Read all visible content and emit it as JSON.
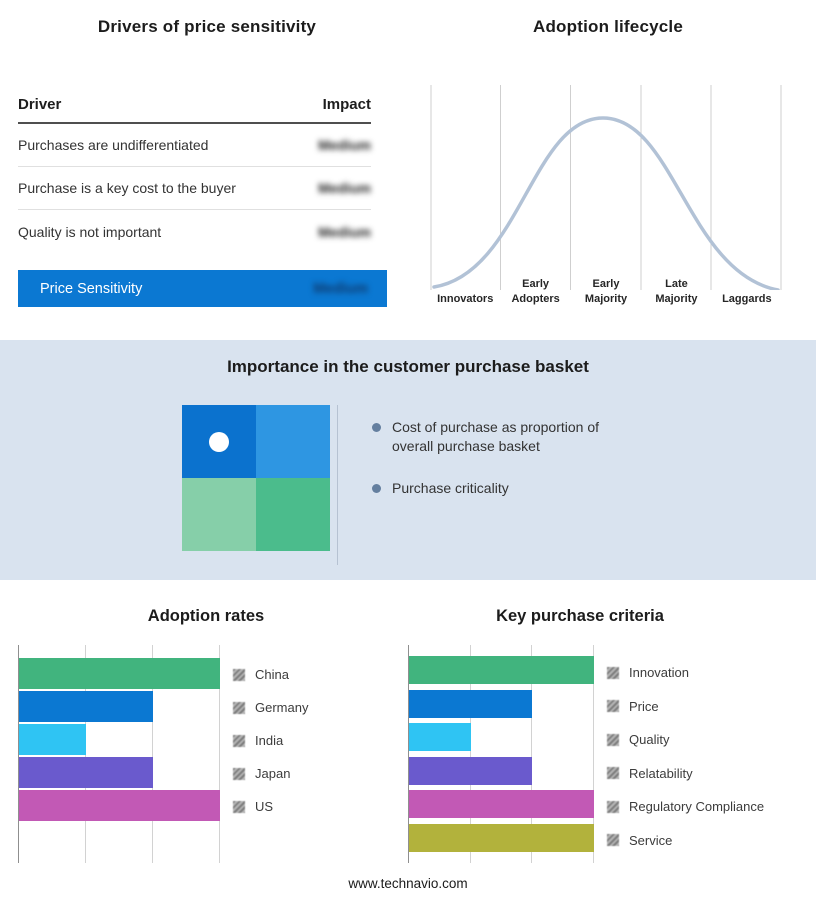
{
  "page": {
    "footer": "www.technavio.com",
    "band_background": "#d9e3ef",
    "accent_color": "#0b78d2"
  },
  "drivers_panel": {
    "title": "Drivers of price sensitivity",
    "columns": {
      "driver": "Driver",
      "impact": "Impact"
    },
    "rows": [
      {
        "driver": "Purchases are undifferentiated",
        "impact": "Medium"
      },
      {
        "driver": "Purchase is a key cost to the buyer",
        "impact": "Medium"
      },
      {
        "driver": "Quality is not important",
        "impact": "Medium"
      }
    ],
    "summary": {
      "label": "Price Sensitivity",
      "impact": "Medium"
    }
  },
  "lifecycle_panel": {
    "title": "Adoption lifecycle",
    "stages": [
      "Innovators",
      "Early Adopters",
      "Early Majority",
      "Late Majority",
      "Laggards"
    ],
    "curve_color": "#b2c2d6"
  },
  "basket_panel": {
    "title": "Importance in the customer purchase basket",
    "bullets": [
      "Cost of purchase as proportion of overall purchase basket",
      "Purchase criticality"
    ],
    "quadrants": [
      {
        "position": "top-left",
        "color": "#0b72ce",
        "marker": true
      },
      {
        "position": "top-right",
        "color": "#2e96e2",
        "marker": false
      },
      {
        "position": "bottom-left",
        "color": "#86cfa9",
        "marker": false
      },
      {
        "position": "bottom-right",
        "color": "#4bbc8c",
        "marker": false
      }
    ]
  },
  "chart_data": [
    {
      "type": "bar",
      "title": "Adoption rates",
      "orientation": "horizontal",
      "categories": [
        "China",
        "Germany",
        "India",
        "Japan",
        "US"
      ],
      "values": [
        3,
        2,
        1,
        2,
        3
      ],
      "xlim": [
        0,
        3
      ],
      "colors": [
        "#41b47e",
        "#0b78d2",
        "#2fc4f3",
        "#6a5acd",
        "#c259b5"
      ],
      "grid": true,
      "legend_position": "right"
    },
    {
      "type": "bar",
      "title": "Key purchase criteria",
      "orientation": "horizontal",
      "categories": [
        "Innovation",
        "Price",
        "Quality",
        "Relatability",
        "Regulatory Compliance",
        "Service"
      ],
      "values": [
        3,
        2,
        1,
        2,
        3,
        3
      ],
      "xlim": [
        0,
        3
      ],
      "colors": [
        "#41b47e",
        "#0b78d2",
        "#2fc4f3",
        "#6a5acd",
        "#c259b5",
        "#b2b23c"
      ],
      "grid": true,
      "legend_position": "right"
    },
    {
      "type": "line",
      "title": "Adoption lifecycle",
      "subtype": "bell-curve",
      "categories": [
        "Innovators",
        "Early Adopters",
        "Early Majority",
        "Late Majority",
        "Laggards"
      ],
      "relative_heights": [
        0.08,
        0.6,
        1.0,
        0.6,
        0.08
      ],
      "peak_stage": "Early Majority",
      "grid": true
    }
  ]
}
